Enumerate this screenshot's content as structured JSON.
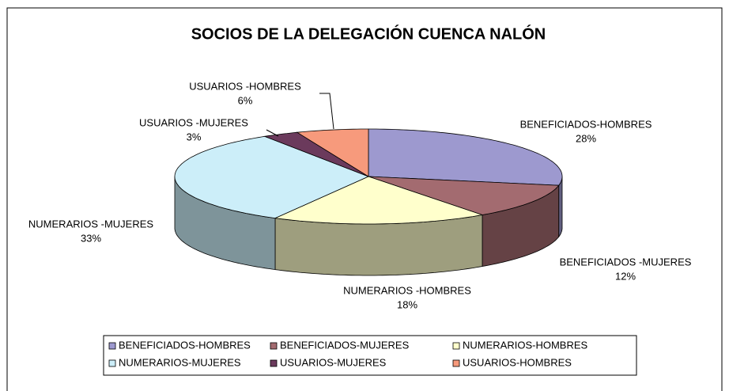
{
  "chart_data": {
    "type": "pie3d",
    "title": "SOCIOS DE LA DELEGACIÓN CUENCA NALÓN",
    "categories": [
      "BENEFICIADOS-HOMBRES",
      "BENEFICIADOS-MUJERES",
      "NUMERARIOS-HOMBRES",
      "NUMERARIOS-MUJERES",
      "USUARIOS-MUJERES",
      "USUARIOS-HOMBRES"
    ],
    "data_label_names": [
      "BENEFICIADOS-HOMBRES",
      "BENEFICIADOS -MUJERES",
      "NUMERARIOS -HOMBRES",
      "NUMERARIOS -MUJERES",
      "USUARIOS -MUJERES",
      "USUARIOS -HOMBRES"
    ],
    "values": [
      28,
      12,
      18,
      33,
      3,
      6
    ],
    "value_labels": [
      "28%",
      "12%",
      "18%",
      "33%",
      "3%",
      "6%"
    ],
    "colors": [
      "#9d99cf",
      "#a36b70",
      "#ffffcc",
      "#cceef9",
      "#6b3a5c",
      "#f79a7c"
    ],
    "legend": "bottom"
  }
}
